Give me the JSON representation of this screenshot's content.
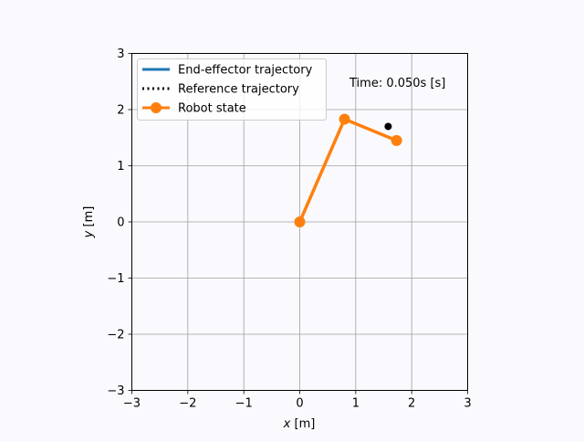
{
  "chart_data": {
    "type": "line",
    "xlabel_var": "x",
    "xlabel_unit": " [m]",
    "ylabel_var": "y",
    "ylabel_unit": " [m]",
    "xlim": [
      -3,
      3
    ],
    "ylim": [
      -3,
      3
    ],
    "xticks": [
      -3,
      -2,
      -1,
      0,
      1,
      2,
      3
    ],
    "yticks": [
      -3,
      -2,
      -1,
      0,
      1,
      2,
      3
    ],
    "xtick_labels": [
      "−3",
      "−2",
      "−1",
      "0",
      "1",
      "2",
      "3"
    ],
    "ytick_labels": [
      "−3",
      "−2",
      "−1",
      "0",
      "1",
      "2",
      "3"
    ],
    "grid": true,
    "legend_position": "top-left",
    "annotation": "Time: 0.050s [s]",
    "series": [
      {
        "name": "End-effector trajectory",
        "style": "solid",
        "color": "#1f77b4",
        "x": [],
        "y": []
      },
      {
        "name": "Reference trajectory",
        "style": "dotted",
        "color": "#000000",
        "x": [
          1.58
        ],
        "y": [
          1.7
        ]
      },
      {
        "name": "Robot state",
        "style": "solid-marker",
        "color": "#ff7f0e",
        "x": [
          0,
          0.8,
          1.73
        ],
        "y": [
          0,
          1.83,
          1.45
        ]
      }
    ]
  }
}
